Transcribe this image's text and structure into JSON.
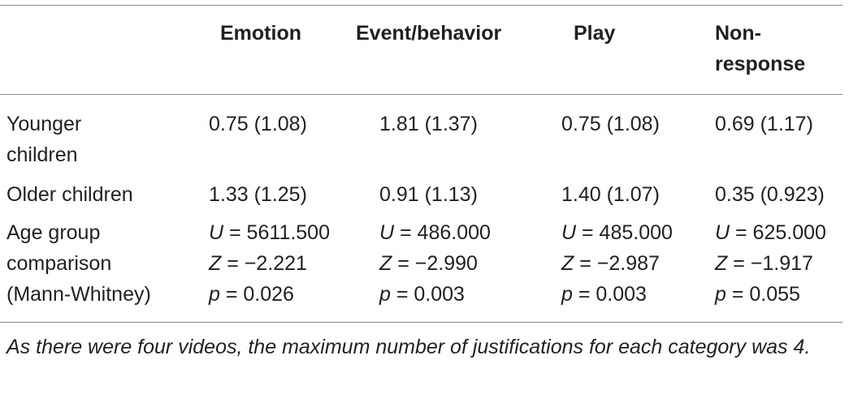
{
  "table": {
    "headers": {
      "emotion": "Emotion",
      "event_behavior": "Event/behavior",
      "play": "Play",
      "non_response_line1": "Non-",
      "non_response_line2": "response"
    },
    "rows": [
      {
        "label_line1": "Younger",
        "label_line2": "children",
        "emotion": "0.75 (1.08)",
        "event_behavior": "1.81 (1.37)",
        "play": "0.75 (1.08)",
        "non_response": "0.69 (1.17)"
      },
      {
        "label_line1": "Older children",
        "emotion": "1.33 (1.25)",
        "event_behavior": "0.91 (1.13)",
        "play": "1.40 (1.07)",
        "non_response": "0.35 (0.923)"
      }
    ],
    "comparison": {
      "label_line1": "Age group",
      "label_line2": "comparison",
      "label_line3": "(Mann-Whitney)",
      "symbols": {
        "u": "U",
        "z": "Z",
        "p": "p"
      },
      "emotion": {
        "u": " = 5611.500",
        "z": " = −2.221",
        "p": " = 0.026"
      },
      "event_behavior": {
        "u": " = 486.000",
        "z": " = −2.990",
        "p": " = 0.003"
      },
      "play": {
        "u": " = 485.000",
        "z": " = −2.987",
        "p": " = 0.003"
      },
      "non_response": {
        "u": " = 625.000",
        "z": " = −1.917",
        "p": " = 0.055"
      }
    }
  },
  "footnote": "As there were four videos, the maximum number of justifications for each category was 4."
}
